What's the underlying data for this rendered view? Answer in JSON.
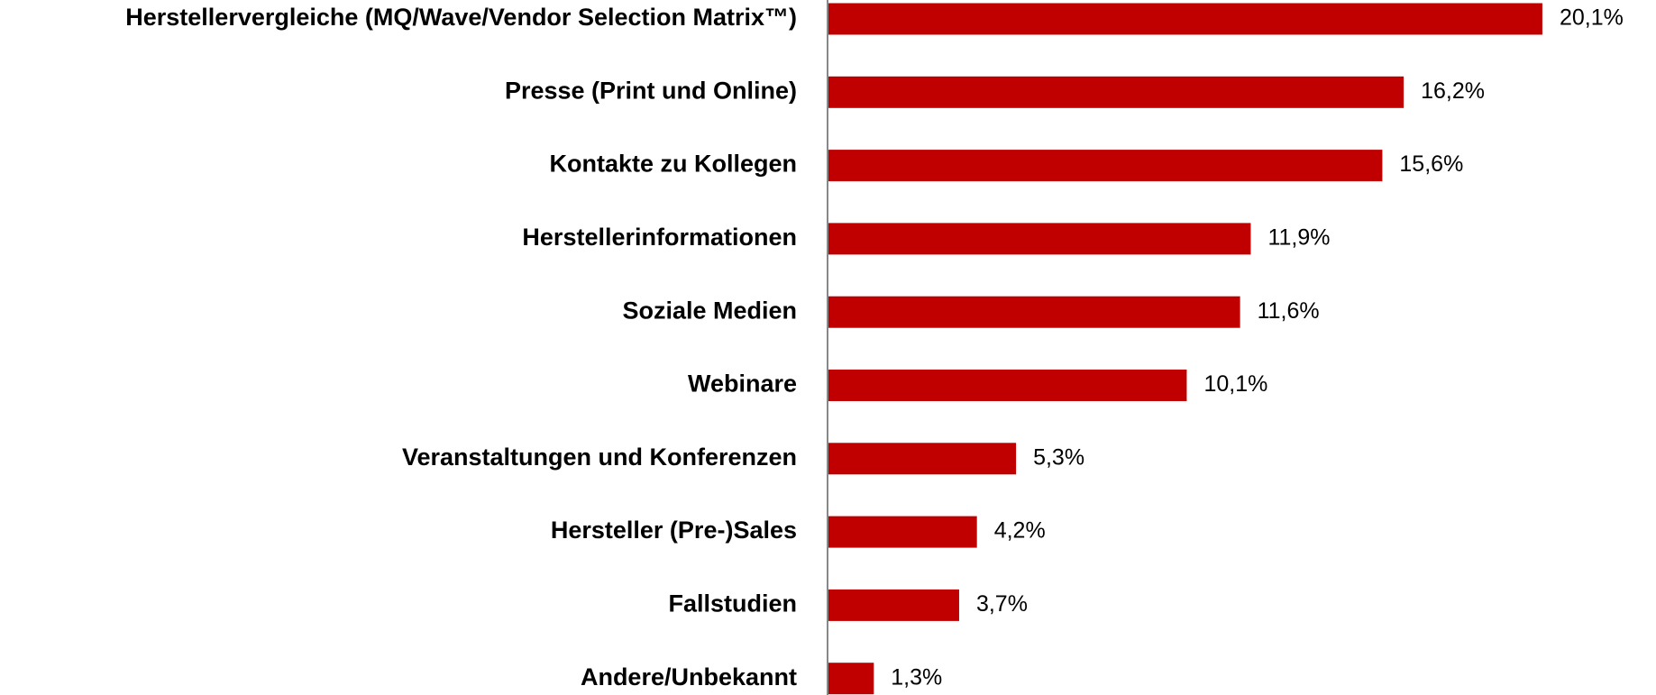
{
  "chart_data": {
    "type": "bar",
    "orientation": "horizontal",
    "categories": [
      "Herstellervergleiche (MQ/Wave/Vendor Selection Matrix™)",
      "Presse (Print und Online)",
      "Kontakte zu Kollegen",
      "Herstellerinformationen",
      "Soziale Medien",
      "Webinare",
      "Veranstaltungen und Konferenzen",
      "Hersteller (Pre-)Sales",
      "Fallstudien",
      "Andere/Unbekannt"
    ],
    "values": [
      20.1,
      16.2,
      15.6,
      11.9,
      11.6,
      10.1,
      5.3,
      4.2,
      3.7,
      1.3
    ],
    "value_labels": [
      "20,1%",
      "16,2%",
      "15,6%",
      "11,9%",
      "11,6%",
      "10,1%",
      "5,3%",
      "4,2%",
      "3,7%",
      "1,3%"
    ],
    "color": "#c00000"
  }
}
